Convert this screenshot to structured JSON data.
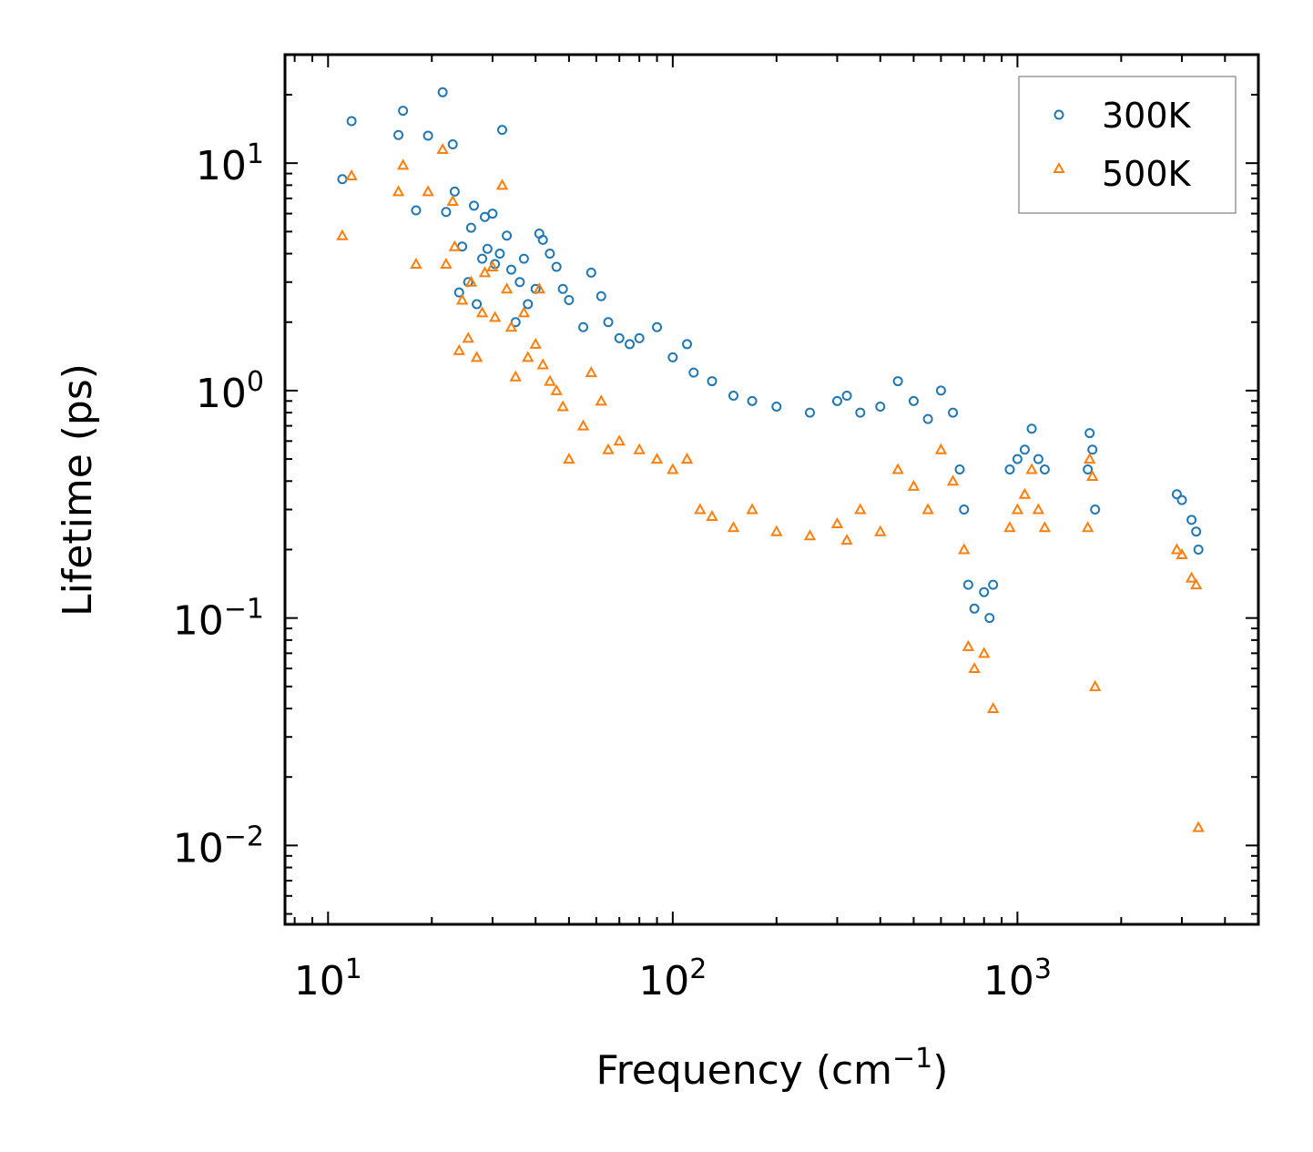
{
  "chart_data": {
    "type": "scatter",
    "xscale": "log",
    "yscale": "log",
    "xlabel": "Frequency (cm",
    "xlabel_sup": "−1",
    "xlabel_close": ")",
    "ylabel": "Lifetime (ps)",
    "xlim": [
      7.5,
      5000
    ],
    "ylim": [
      0.0045,
      30
    ],
    "x_ticks": [
      {
        "value": 10,
        "base": "10",
        "exp": "1"
      },
      {
        "value": 100,
        "base": "10",
        "exp": "2"
      },
      {
        "value": 1000,
        "base": "10",
        "exp": "3"
      }
    ],
    "y_ticks": [
      {
        "value": 0.01,
        "base": "10",
        "exp": "−2"
      },
      {
        "value": 0.1,
        "base": "10",
        "exp": "−1"
      },
      {
        "value": 1,
        "base": "10",
        "exp": "0"
      },
      {
        "value": 10,
        "base": "10",
        "exp": "1"
      }
    ],
    "legend": {
      "position": "top-right"
    },
    "series": [
      {
        "name": "300K",
        "marker": "circle",
        "color": "#1f77b4",
        "points": [
          [
            11,
            8.5
          ],
          [
            11.7,
            15.3
          ],
          [
            16,
            13.3
          ],
          [
            16.5,
            17
          ],
          [
            18,
            6.2
          ],
          [
            19.5,
            13.2
          ],
          [
            21.5,
            20.5
          ],
          [
            22,
            6.1
          ],
          [
            23,
            12.1
          ],
          [
            23.3,
            7.5
          ],
          [
            24,
            2.7
          ],
          [
            24.5,
            4.3
          ],
          [
            25.5,
            3
          ],
          [
            26,
            5.2
          ],
          [
            26.5,
            6.5
          ],
          [
            27,
            2.4
          ],
          [
            28,
            3.8
          ],
          [
            28.5,
            5.8
          ],
          [
            29,
            4.2
          ],
          [
            30,
            6
          ],
          [
            30.5,
            3.6
          ],
          [
            31.5,
            4
          ],
          [
            32,
            14
          ],
          [
            33,
            4.8
          ],
          [
            34,
            3.4
          ],
          [
            35,
            2
          ],
          [
            36,
            3
          ],
          [
            37,
            3.8
          ],
          [
            38,
            2.4
          ],
          [
            40,
            2.8
          ],
          [
            41,
            4.9
          ],
          [
            42,
            4.6
          ],
          [
            44,
            4
          ],
          [
            46,
            3.5
          ],
          [
            48,
            2.8
          ],
          [
            50,
            2.5
          ],
          [
            55,
            1.9
          ],
          [
            58,
            3.3
          ],
          [
            62,
            2.6
          ],
          [
            65,
            2
          ],
          [
            70,
            1.7
          ],
          [
            75,
            1.6
          ],
          [
            80,
            1.7
          ],
          [
            90,
            1.9
          ],
          [
            100,
            1.4
          ],
          [
            110,
            1.6
          ],
          [
            115,
            1.2
          ],
          [
            130,
            1.1
          ],
          [
            150,
            0.95
          ],
          [
            170,
            0.9
          ],
          [
            200,
            0.85
          ],
          [
            250,
            0.8
          ],
          [
            300,
            0.9
          ],
          [
            320,
            0.95
          ],
          [
            350,
            0.8
          ],
          [
            400,
            0.85
          ],
          [
            450,
            1.1
          ],
          [
            500,
            0.9
          ],
          [
            550,
            0.75
          ],
          [
            600,
            1
          ],
          [
            650,
            0.8
          ],
          [
            680,
            0.45
          ],
          [
            700,
            0.3
          ],
          [
            720,
            0.14
          ],
          [
            750,
            0.11
          ],
          [
            800,
            0.13
          ],
          [
            830,
            0.1
          ],
          [
            850,
            0.14
          ],
          [
            950,
            0.45
          ],
          [
            1000,
            0.5
          ],
          [
            1050,
            0.55
          ],
          [
            1100,
            0.68
          ],
          [
            1150,
            0.5
          ],
          [
            1200,
            0.45
          ],
          [
            1600,
            0.45
          ],
          [
            1620,
            0.65
          ],
          [
            1650,
            0.55
          ],
          [
            1680,
            0.3
          ],
          [
            2900,
            0.35
          ],
          [
            3000,
            0.33
          ],
          [
            3200,
            0.27
          ],
          [
            3300,
            0.24
          ],
          [
            3350,
            0.2
          ]
        ]
      },
      {
        "name": "500K",
        "marker": "triangle",
        "color": "#ff7f0e",
        "points": [
          [
            11,
            4.8
          ],
          [
            11.7,
            8.8
          ],
          [
            16,
            7.5
          ],
          [
            16.5,
            9.8
          ],
          [
            18,
            3.6
          ],
          [
            19.5,
            7.5
          ],
          [
            21.5,
            11.5
          ],
          [
            22,
            3.6
          ],
          [
            23,
            6.8
          ],
          [
            23.3,
            4.3
          ],
          [
            24,
            1.5
          ],
          [
            24.5,
            2.5
          ],
          [
            25.5,
            1.7
          ],
          [
            26,
            3
          ],
          [
            27,
            1.4
          ],
          [
            28,
            2.2
          ],
          [
            28.5,
            3.3
          ],
          [
            30,
            3.5
          ],
          [
            30.5,
            2.1
          ],
          [
            32,
            8
          ],
          [
            33,
            2.8
          ],
          [
            34,
            1.9
          ],
          [
            35,
            1.15
          ],
          [
            37,
            2.2
          ],
          [
            38,
            1.4
          ],
          [
            40,
            1.6
          ],
          [
            41,
            2.8
          ],
          [
            42,
            1.3
          ],
          [
            44,
            1.1
          ],
          [
            46,
            1
          ],
          [
            48,
            0.85
          ],
          [
            50,
            0.5
          ],
          [
            55,
            0.7
          ],
          [
            58,
            1.2
          ],
          [
            62,
            0.9
          ],
          [
            65,
            0.55
          ],
          [
            70,
            0.6
          ],
          [
            80,
            0.55
          ],
          [
            90,
            0.5
          ],
          [
            100,
            0.45
          ],
          [
            110,
            0.5
          ],
          [
            120,
            0.3
          ],
          [
            130,
            0.28
          ],
          [
            150,
            0.25
          ],
          [
            170,
            0.3
          ],
          [
            200,
            0.24
          ],
          [
            250,
            0.23
          ],
          [
            300,
            0.26
          ],
          [
            320,
            0.22
          ],
          [
            350,
            0.3
          ],
          [
            400,
            0.24
          ],
          [
            450,
            0.45
          ],
          [
            500,
            0.38
          ],
          [
            550,
            0.3
          ],
          [
            600,
            0.55
          ],
          [
            650,
            0.4
          ],
          [
            700,
            0.2
          ],
          [
            720,
            0.075
          ],
          [
            750,
            0.06
          ],
          [
            800,
            0.07
          ],
          [
            850,
            0.04
          ],
          [
            950,
            0.25
          ],
          [
            1000,
            0.3
          ],
          [
            1050,
            0.35
          ],
          [
            1100,
            0.45
          ],
          [
            1150,
            0.3
          ],
          [
            1200,
            0.25
          ],
          [
            1600,
            0.25
          ],
          [
            1620,
            0.5
          ],
          [
            1650,
            0.42
          ],
          [
            1680,
            0.05
          ],
          [
            2900,
            0.2
          ],
          [
            3000,
            0.19
          ],
          [
            3200,
            0.15
          ],
          [
            3300,
            0.14
          ],
          [
            3350,
            0.012
          ]
        ]
      }
    ]
  }
}
